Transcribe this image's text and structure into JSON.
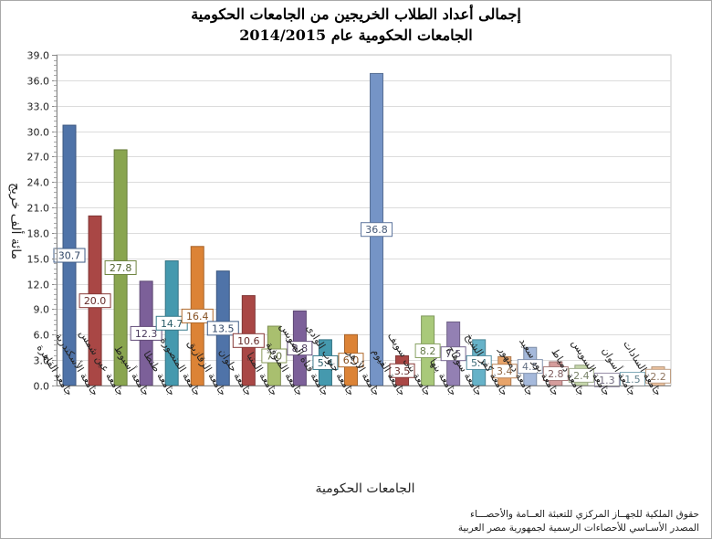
{
  "chart_data": {
    "type": "bar",
    "title": "إجمالى أعداد الطلاب الخريجين من الجامعات الحكومية",
    "subtitle": "الجامعات  الحكومية  عام 2014/2015",
    "xlabel": "الجامعات الحكومية",
    "ylabel": "مائة ألف خريج",
    "ylim": [
      0,
      39.0
    ],
    "yticks": [
      "0.0",
      "3.0",
      "6.0",
      "9.0",
      "12.0",
      "15.0",
      "18.0",
      "21.0",
      "24.0",
      "27.0",
      "30.0",
      "33.0",
      "36.0",
      "39.0"
    ],
    "grid": true,
    "categories": [
      "جامعة القاهرة",
      "جامعة الأسكندرية",
      "جامعة عين شمس",
      "جامعة أسيوط",
      "جامعة طنطا",
      "جامعة المنصورة",
      "جامعة الزقازيق",
      "جامعة حلوان",
      "جامعة المنيا",
      "جامعة المنوفية",
      "جامعة قناة السويس",
      "جامعة جنوب الوادى",
      "جامعة الأزهر",
      "جامعة الفيوم",
      "جامعة بنى سويف",
      "جامعة بنها",
      "جامعة سوهاج",
      "جامعة كفر الشيخ",
      "جامعة دمنهور",
      "جامعة بور سعيد",
      "جامعة دمياط",
      "جامعة السويس",
      "جامعة أسوان",
      "جامعة السادات"
    ],
    "values": [
      30.7,
      20.0,
      27.8,
      12.3,
      14.7,
      16.4,
      13.5,
      10.6,
      7.0,
      8.8,
      5.4,
      6.0,
      36.8,
      3.5,
      8.2,
      7.5,
      5.4,
      3.4,
      4.5,
      2.8,
      2.4,
      1.3,
      1.5,
      2.2
    ],
    "labels": [
      "30.7",
      "20.0",
      "27.8",
      "12.3",
      "14.7",
      "16.4",
      "13.5",
      "10.6",
      "7.0",
      "8.8",
      "5.4",
      "6.0",
      "36.8",
      "3.5",
      "8.2",
      "7.5",
      "5.4",
      "3.4",
      "4.5",
      "2.8",
      "2.4",
      "1.3",
      "1.5",
      "2.2"
    ],
    "colors": [
      "#4f73a8",
      "#a94745",
      "#89a54f",
      "#7c6099",
      "#4599ae",
      "#dc8336",
      "#4f73a8",
      "#a94745",
      "#a9bf6f",
      "#7c6099",
      "#4599ae",
      "#dc8336",
      "#7594c6",
      "#a94745",
      "#a9c97a",
      "#9380b3",
      "#66b2c8",
      "#e8a46a",
      "#a5b9db",
      "#d59d9c",
      "#c6d7ab",
      "#bdb1d1",
      "#9dd3e6",
      "#efc5a1"
    ]
  },
  "footer": {
    "line1": "حقوق الملكية للجهــاز المركزي للتعبئة العــامة والأحصـــاء",
    "line2": "المصدر الأسـاسي للأحصاءات الرسمية لجمهورية مصر العربية"
  }
}
